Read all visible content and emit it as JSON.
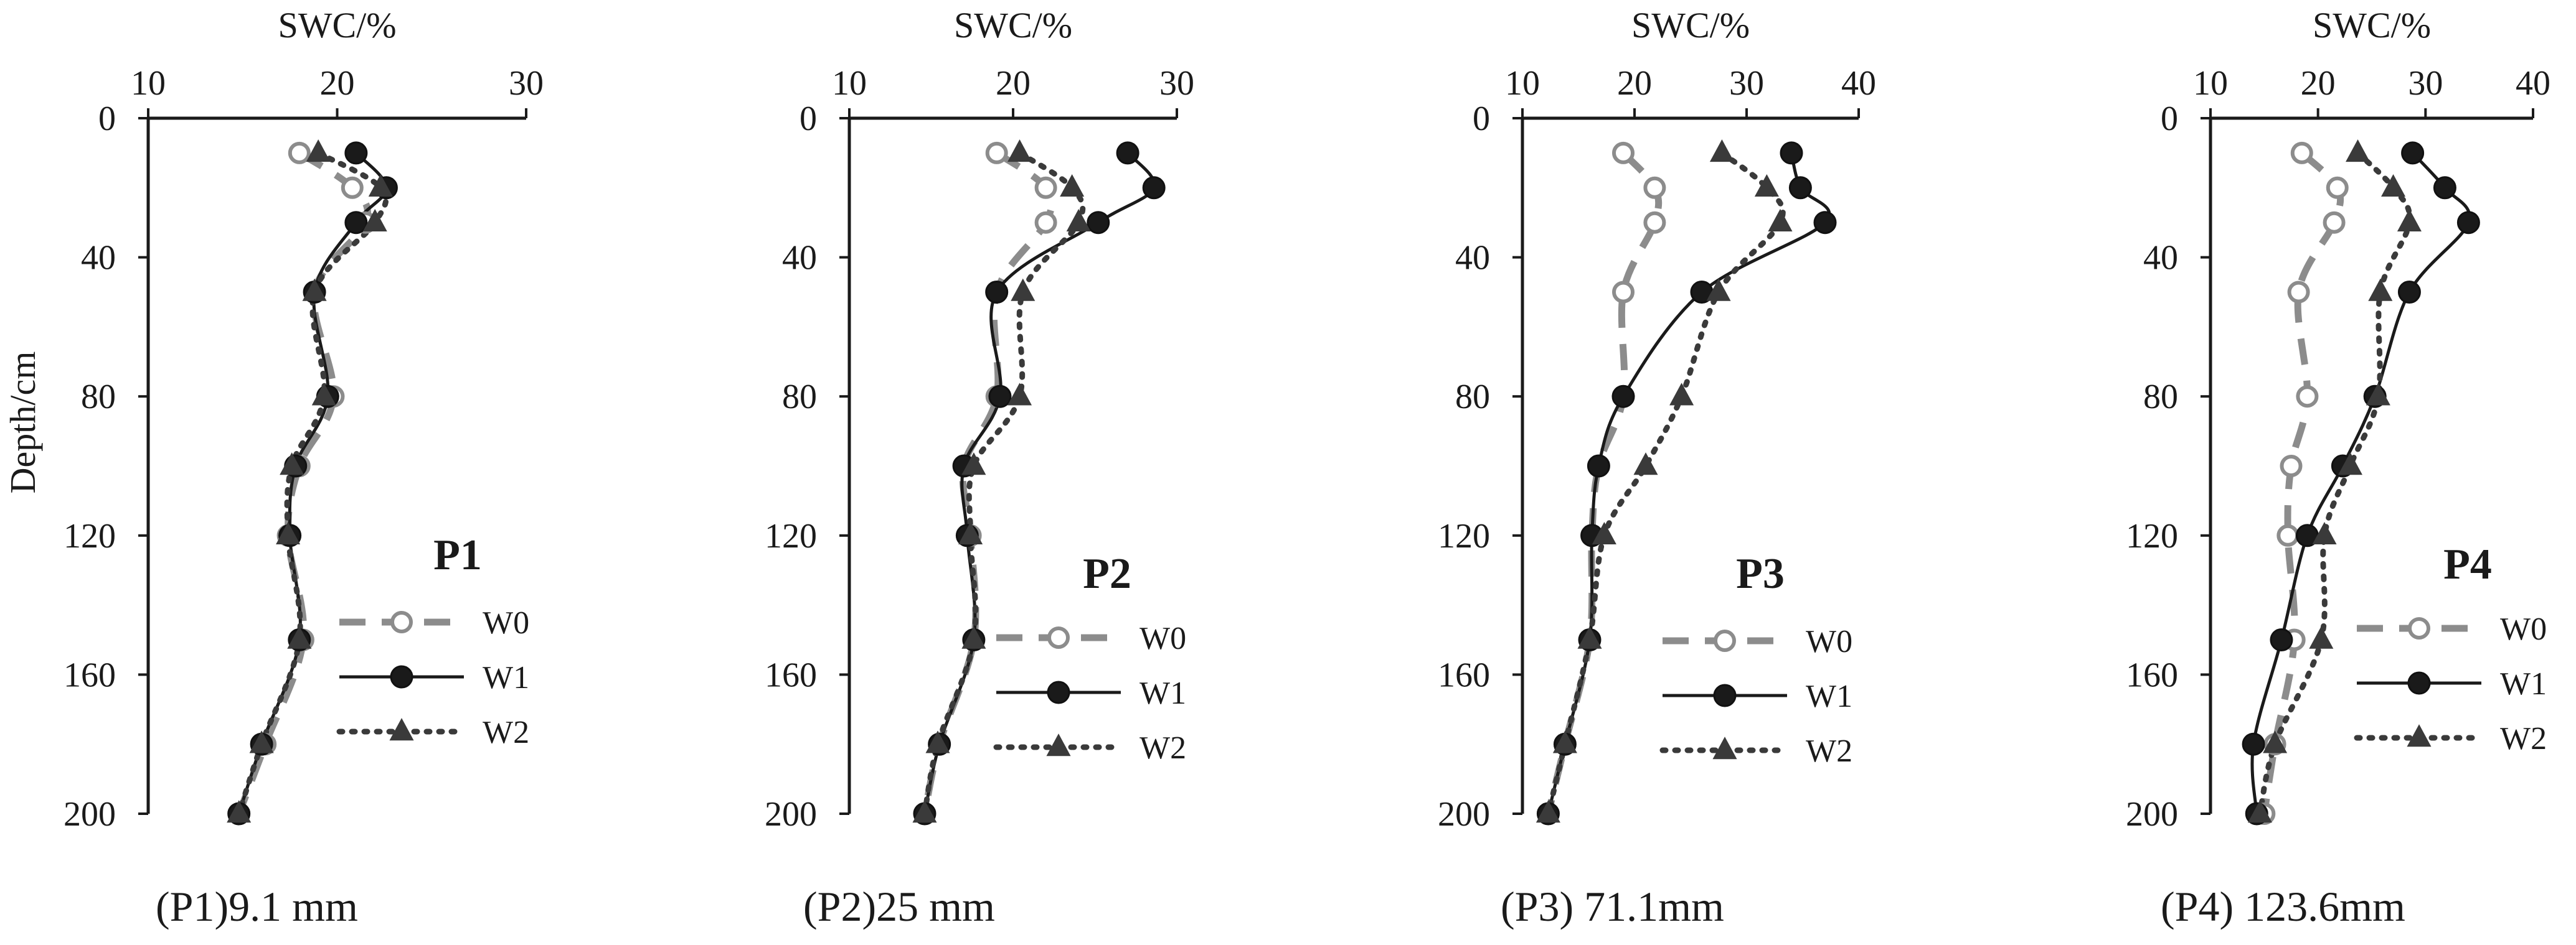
{
  "figure": {
    "series_styles": {
      "W0": {
        "color": "#8c8c8c",
        "dash": "42 26",
        "width": 11,
        "marker": "circle-open"
      },
      "W1": {
        "color": "#1a1a1a",
        "dash": "",
        "width": 5,
        "marker": "circle-filled"
      },
      "W2": {
        "color": "#3a3a3a",
        "dash": "5 15",
        "width": 9,
        "marker": "triangle"
      }
    }
  },
  "chart_data": [
    {
      "type": "line",
      "panel": "P1",
      "caption": "(P1)9.1 mm",
      "xlabel": "SWC/%",
      "ylabel": "Depth/cm",
      "xlim": [
        10,
        30
      ],
      "xticks": [
        10,
        20,
        30
      ],
      "ylim": [
        0,
        200
      ],
      "yticks": [
        0,
        40,
        80,
        120,
        160,
        200
      ],
      "legend": [
        "W0",
        "W1",
        "W2"
      ],
      "series": [
        {
          "name": "W0",
          "depth": [
            10,
            20,
            30,
            50,
            80,
            100,
            120,
            150,
            180,
            200
          ],
          "swc": [
            18.0,
            20.8,
            21.5,
            18.8,
            19.8,
            18.0,
            17.4,
            18.2,
            16.2,
            14.8
          ]
        },
        {
          "name": "W1",
          "depth": [
            10,
            20,
            30,
            50,
            80,
            100,
            120,
            150,
            180,
            200
          ],
          "swc": [
            21.0,
            22.6,
            21.0,
            18.8,
            19.5,
            17.8,
            17.5,
            18.0,
            16.0,
            14.8
          ]
        },
        {
          "name": "W2",
          "depth": [
            10,
            20,
            30,
            50,
            80,
            100,
            120,
            150,
            180,
            200
          ],
          "swc": [
            19.0,
            22.3,
            22.0,
            18.8,
            19.3,
            17.6,
            17.4,
            18.0,
            16.0,
            14.8
          ]
        }
      ]
    },
    {
      "type": "line",
      "panel": "P2",
      "caption": "(P2)25 mm",
      "xlabel": "SWC/%",
      "ylabel": "",
      "xlim": [
        10,
        30
      ],
      "xticks": [
        10,
        20,
        30
      ],
      "ylim": [
        0,
        200
      ],
      "yticks": [
        0,
        40,
        80,
        120,
        160,
        200
      ],
      "legend": [
        "W0",
        "W1",
        "W2"
      ],
      "series": [
        {
          "name": "W0",
          "depth": [
            10,
            20,
            30,
            50,
            80,
            100,
            120,
            150,
            180,
            200
          ],
          "swc": [
            19.0,
            22.0,
            22.0,
            19.0,
            19.0,
            17.0,
            17.4,
            17.6,
            15.5,
            14.6
          ]
        },
        {
          "name": "W1",
          "depth": [
            10,
            20,
            30,
            50,
            80,
            100,
            120,
            150,
            180,
            200
          ],
          "swc": [
            27.0,
            28.6,
            25.2,
            19.0,
            19.2,
            17.0,
            17.2,
            17.6,
            15.5,
            14.6
          ]
        },
        {
          "name": "W2",
          "depth": [
            10,
            20,
            30,
            50,
            80,
            100,
            120,
            150,
            180,
            200
          ],
          "swc": [
            20.4,
            23.6,
            24.0,
            20.6,
            20.4,
            17.6,
            17.4,
            17.6,
            15.4,
            14.6
          ]
        }
      ]
    },
    {
      "type": "line",
      "panel": "P3",
      "caption": "(P3) 71.1mm",
      "xlabel": "SWC/%",
      "ylabel": "",
      "xlim": [
        10,
        40
      ],
      "xticks": [
        10,
        20,
        30,
        40
      ],
      "ylim": [
        0,
        200
      ],
      "yticks": [
        0,
        40,
        80,
        120,
        160,
        200
      ],
      "legend": [
        "W0",
        "W1",
        "W2"
      ],
      "series": [
        {
          "name": "W0",
          "depth": [
            10,
            20,
            30,
            50,
            80,
            100,
            120,
            150,
            180,
            200
          ],
          "swc": [
            19.0,
            21.8,
            21.8,
            19.0,
            19.0,
            16.8,
            16.2,
            16.0,
            13.8,
            12.3
          ]
        },
        {
          "name": "W1",
          "depth": [
            10,
            20,
            30,
            50,
            80,
            100,
            120,
            150,
            180,
            200
          ],
          "swc": [
            34.0,
            34.8,
            37.0,
            26.0,
            19.0,
            16.8,
            16.2,
            16.0,
            13.8,
            12.3
          ]
        },
        {
          "name": "W2",
          "depth": [
            10,
            20,
            30,
            50,
            80,
            100,
            120,
            150,
            180,
            200
          ],
          "swc": [
            27.8,
            31.8,
            33.0,
            27.5,
            24.2,
            21.0,
            17.3,
            16.0,
            13.8,
            12.3
          ]
        }
      ]
    },
    {
      "type": "line",
      "panel": "P4",
      "caption": "(P4) 123.6mm",
      "xlabel": "SWC/%",
      "ylabel": "",
      "xlim": [
        10,
        40
      ],
      "xticks": [
        10,
        20,
        30,
        40
      ],
      "ylim": [
        0,
        200
      ],
      "yticks": [
        0,
        40,
        80,
        120,
        160,
        200
      ],
      "legend": [
        "W0",
        "W1",
        "W2"
      ],
      "series": [
        {
          "name": "W0",
          "depth": [
            10,
            20,
            30,
            50,
            80,
            100,
            120,
            150,
            180,
            200
          ],
          "swc": [
            18.5,
            21.8,
            21.5,
            18.2,
            19.0,
            17.5,
            17.2,
            17.8,
            16.0,
            15.0
          ]
        },
        {
          "name": "W1",
          "depth": [
            10,
            20,
            30,
            50,
            80,
            100,
            120,
            150,
            180,
            200
          ],
          "swc": [
            28.8,
            31.8,
            34.0,
            28.5,
            25.3,
            22.3,
            19.0,
            16.6,
            14.0,
            14.3
          ]
        },
        {
          "name": "W2",
          "depth": [
            10,
            20,
            30,
            50,
            80,
            100,
            120,
            150,
            180,
            200
          ],
          "swc": [
            23.7,
            27.0,
            28.5,
            25.8,
            25.6,
            23.0,
            20.6,
            20.3,
            16.0,
            14.6
          ]
        }
      ]
    }
  ]
}
